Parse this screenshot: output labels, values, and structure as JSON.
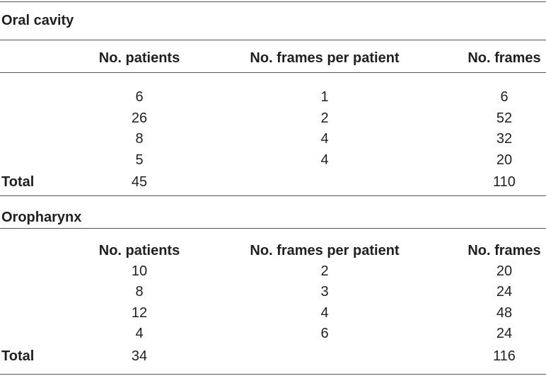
{
  "sections": [
    {
      "title": "Oral cavity",
      "header": [
        "No. patients",
        "No. frames per patient",
        "No. frames"
      ],
      "rows": [
        [
          6,
          1,
          6
        ],
        [
          26,
          2,
          52
        ],
        [
          8,
          4,
          32
        ],
        [
          5,
          4,
          20
        ]
      ],
      "total": {
        "label": "Total",
        "patients": 45,
        "frames": 110
      }
    },
    {
      "title": "Oropharynx",
      "header": [
        "No. patients",
        "No. frames per patient",
        "No. frames"
      ],
      "rows": [
        [
          10,
          2,
          20
        ],
        [
          8,
          3,
          24
        ],
        [
          12,
          4,
          48
        ],
        [
          4,
          6,
          24
        ]
      ],
      "total": {
        "label": "Total",
        "patients": 34,
        "frames": 116
      }
    }
  ]
}
